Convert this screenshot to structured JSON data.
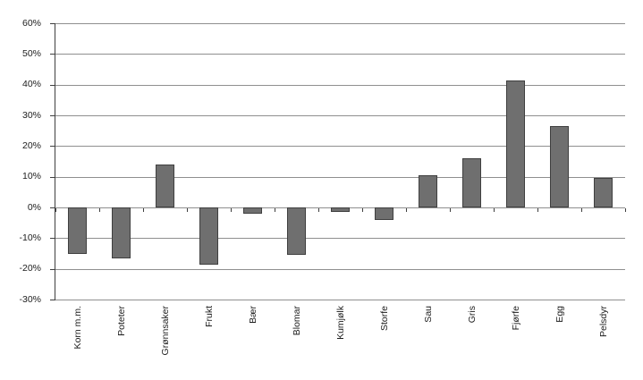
{
  "chart_data": {
    "type": "bar",
    "categories": [
      "Korn m.m.",
      "Poteter",
      "Grønnsaker",
      "Frukt",
      "Bær",
      "Blomar",
      "Kumjølk",
      "Storfe",
      "Sau",
      "Gris",
      "Fjørfe",
      "Egg",
      "Pelsdyr"
    ],
    "values": [
      -15,
      -16.5,
      14,
      -18.5,
      -2,
      -15.5,
      -1.5,
      -4,
      10.5,
      16,
      41.5,
      26.5,
      9.5
    ],
    "title": "",
    "xlabel": "",
    "ylabel": "",
    "ylim": [
      -30,
      60
    ],
    "ytick_step": 10,
    "ytick_labels": [
      "60%",
      "50%",
      "40%",
      "30%",
      "20%",
      "10%",
      "0%",
      "-10%",
      "-20%",
      "-30%"
    ],
    "ytick_values": [
      60,
      50,
      40,
      30,
      20,
      10,
      0,
      -10,
      -20,
      -30
    ],
    "grid": true,
    "legend": false,
    "xtick_rotation": 90,
    "colors": {
      "bar_fill": "#6f6f6f",
      "bar_border": "#3f3f3f",
      "gridline": "#8f8f8f",
      "axis": "#3f3f3f",
      "text": "#1c1c1c",
      "background": "#ffffff"
    }
  }
}
